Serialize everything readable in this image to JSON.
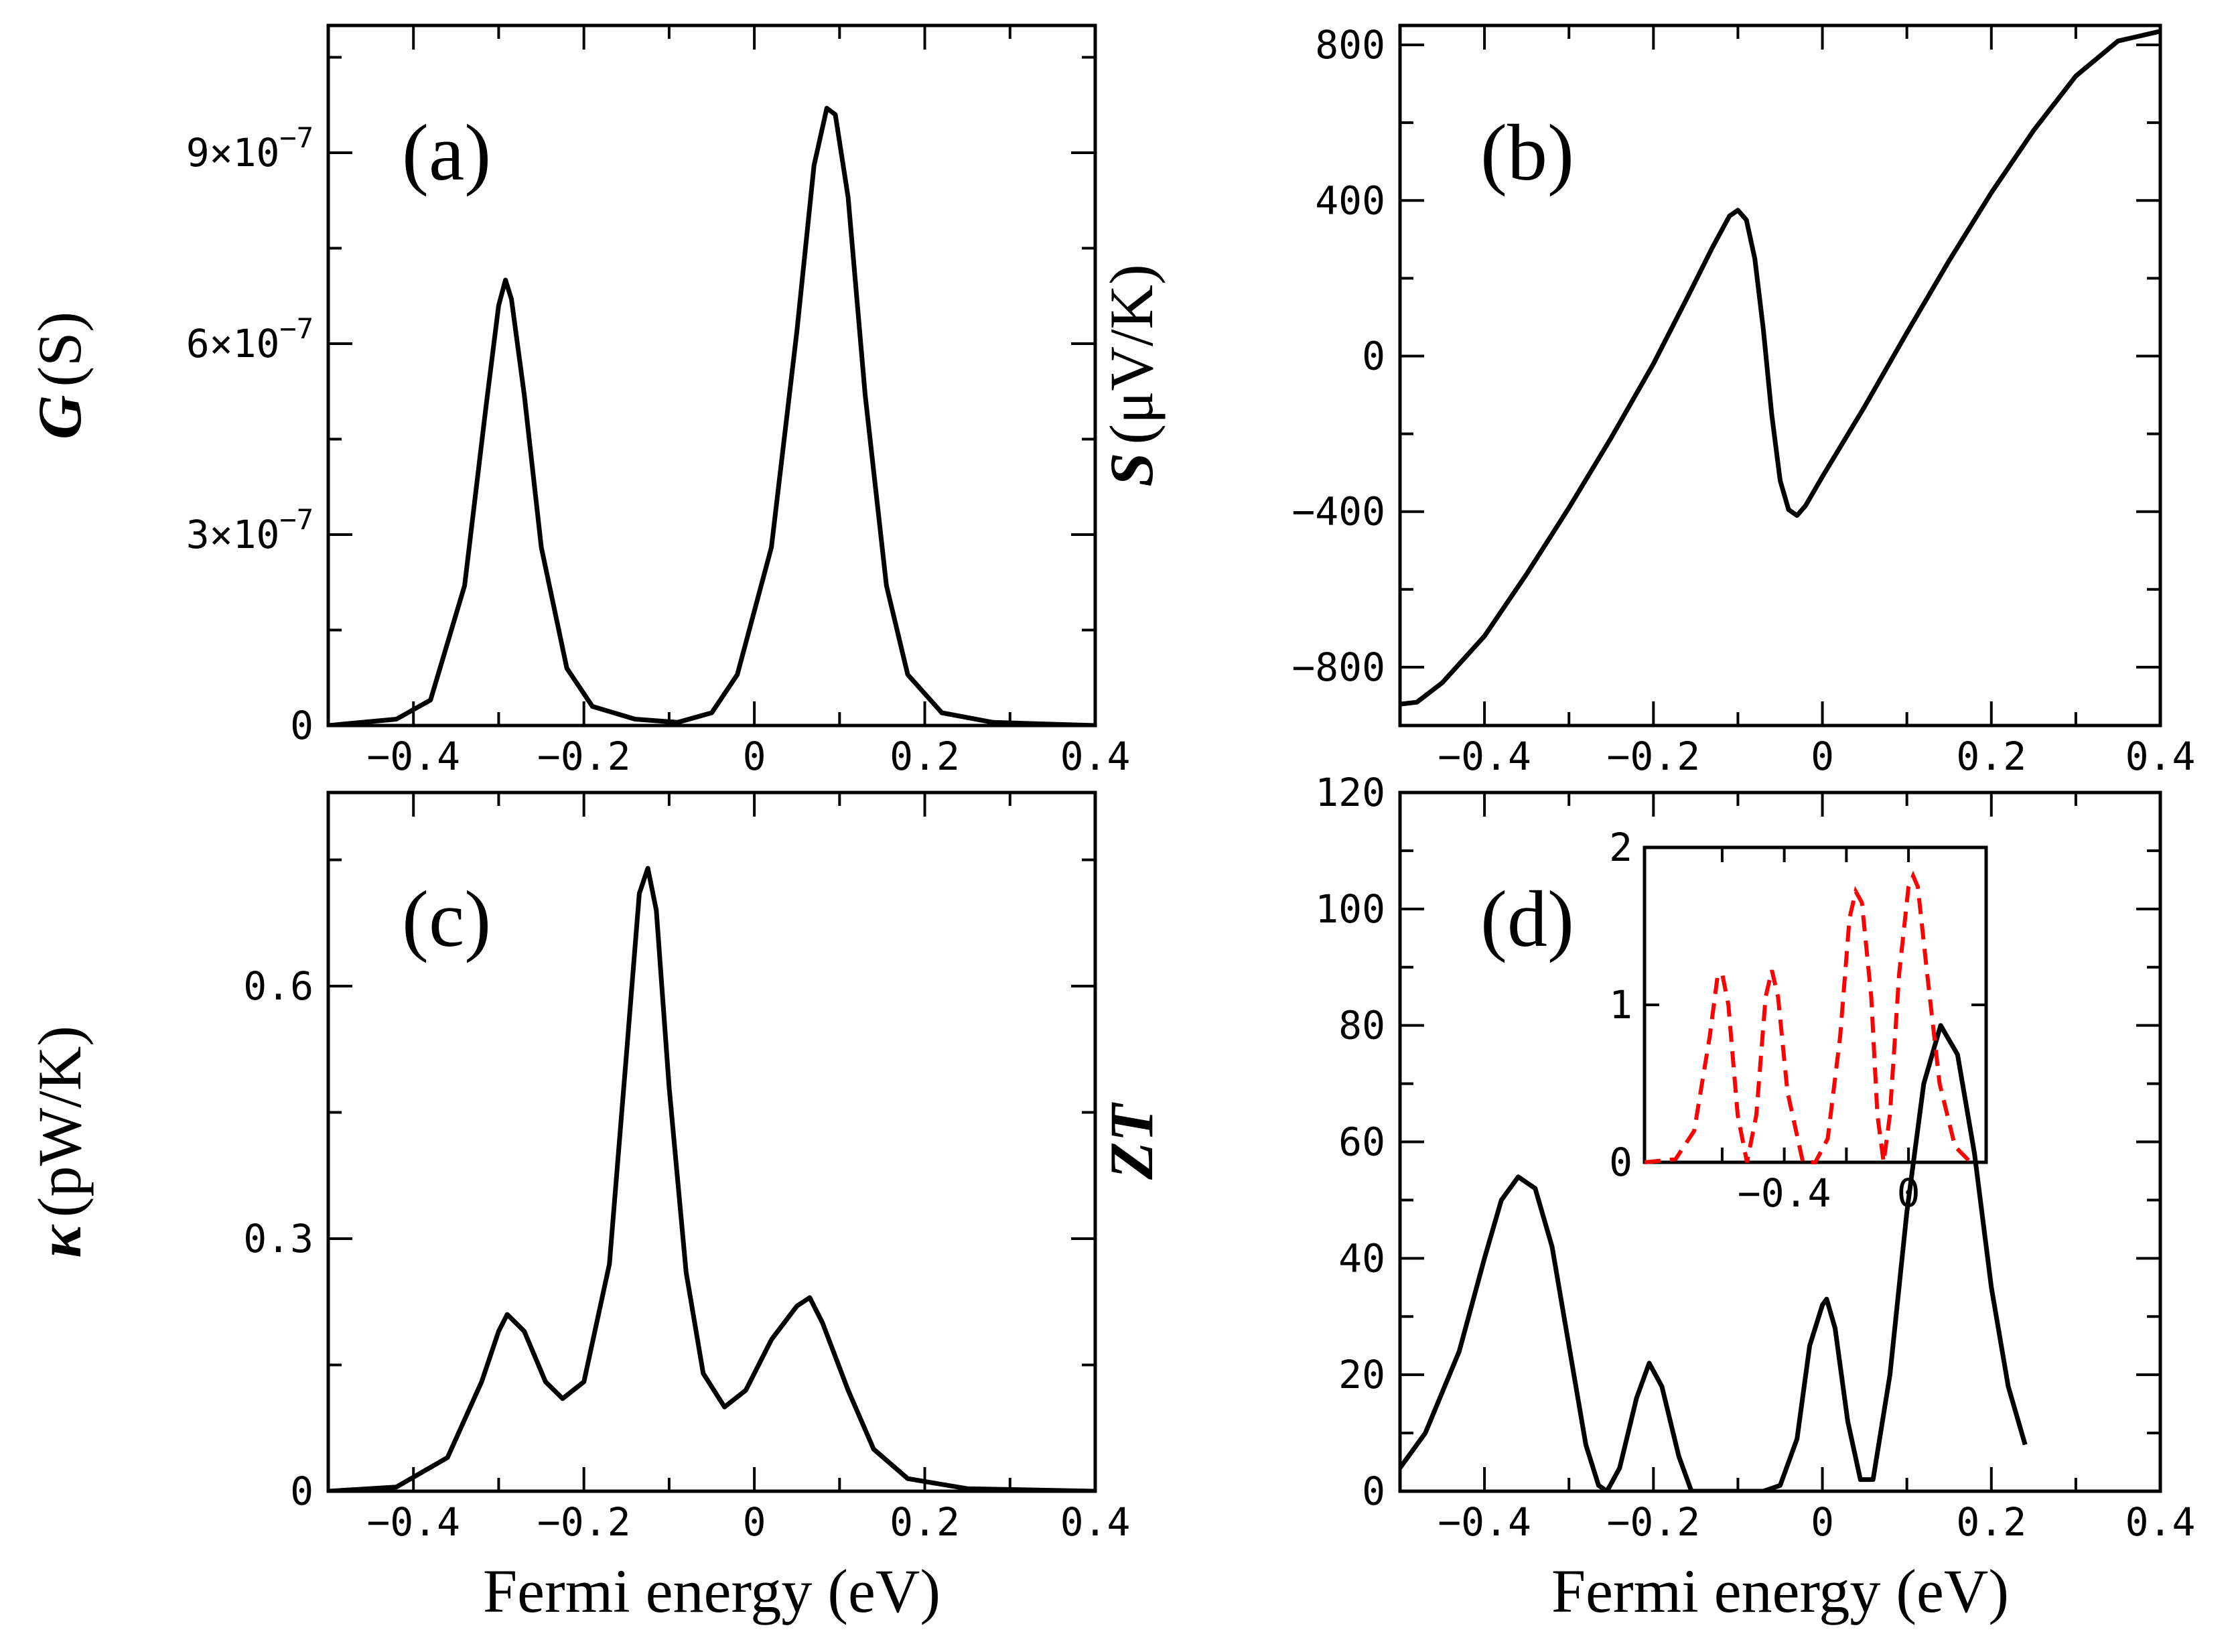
{
  "chart_data": [
    {
      "id": "a",
      "type": "line",
      "panel_label": "(a)",
      "ylabel_symbol": "G",
      "ylabel_unit": "(S)",
      "xlabel": "",
      "xlim": [
        -0.5,
        0.4
      ],
      "ylim": [
        0,
        1.1e-06
      ],
      "xticks": [
        {
          "v": -0.4,
          "label": "−0.4"
        },
        {
          "v": -0.2,
          "label": "−0.2"
        },
        {
          "v": 0,
          "label": "0"
        },
        {
          "v": 0.2,
          "label": "0.2"
        },
        {
          "v": 0.4,
          "label": "0.4"
        }
      ],
      "yticks": [
        {
          "v": 0,
          "base": "0",
          "exp": ""
        },
        {
          "v": 3e-07,
          "base": "3×10",
          "exp": "−7"
        },
        {
          "v": 6e-07,
          "base": "6×10",
          "exp": "−7"
        },
        {
          "v": 9e-07,
          "base": "9×10",
          "exp": "−7"
        }
      ],
      "series": [
        {
          "name": "G",
          "color": "#000000",
          "points": [
            [
              -0.5,
              0
            ],
            [
              -0.42,
              1e-08
            ],
            [
              -0.38,
              4e-08
            ],
            [
              -0.34,
              2.2e-07
            ],
            [
              -0.315,
              5e-07
            ],
            [
              -0.3,
              6.6e-07
            ],
            [
              -0.292,
              7e-07
            ],
            [
              -0.285,
              6.7e-07
            ],
            [
              -0.27,
              5.2e-07
            ],
            [
              -0.25,
              2.8e-07
            ],
            [
              -0.22,
              9e-08
            ],
            [
              -0.19,
              3e-08
            ],
            [
              -0.14,
              1e-08
            ],
            [
              -0.09,
              5e-09
            ],
            [
              -0.05,
              2e-08
            ],
            [
              -0.02,
              8e-08
            ],
            [
              0.02,
              2.8e-07
            ],
            [
              0.05,
              6.2e-07
            ],
            [
              0.07,
              8.8e-07
            ],
            [
              0.085,
              9.7e-07
            ],
            [
              0.095,
              9.6e-07
            ],
            [
              0.11,
              8.3e-07
            ],
            [
              0.13,
              5.2e-07
            ],
            [
              0.155,
              2.2e-07
            ],
            [
              0.18,
              8e-08
            ],
            [
              0.22,
              2e-08
            ],
            [
              0.28,
              5e-09
            ],
            [
              0.4,
              0
            ]
          ]
        }
      ]
    },
    {
      "id": "b",
      "type": "line",
      "panel_label": "(b)",
      "ylabel_symbol": "S",
      "ylabel_unit": "(μV/K)",
      "xlabel": "",
      "xlim": [
        -0.5,
        0.4
      ],
      "ylim": [
        -950,
        850
      ],
      "xticks": [
        {
          "v": -0.4,
          "label": "−0.4"
        },
        {
          "v": -0.2,
          "label": "−0.2"
        },
        {
          "v": 0,
          "label": "0"
        },
        {
          "v": 0.2,
          "label": "0.2"
        },
        {
          "v": 0.4,
          "label": "0.4"
        }
      ],
      "yticks": [
        {
          "v": -800,
          "base": "−800",
          "exp": ""
        },
        {
          "v": -400,
          "base": "−400",
          "exp": ""
        },
        {
          "v": 0,
          "base": "0",
          "exp": ""
        },
        {
          "v": 400,
          "base": "400",
          "exp": ""
        },
        {
          "v": 800,
          "base": "800",
          "exp": ""
        }
      ],
      "series": [
        {
          "name": "S",
          "color": "#000000",
          "points": [
            [
              -0.5,
              -895
            ],
            [
              -0.48,
              -890
            ],
            [
              -0.45,
              -840
            ],
            [
              -0.4,
              -720
            ],
            [
              -0.35,
              -560
            ],
            [
              -0.3,
              -390
            ],
            [
              -0.25,
              -210
            ],
            [
              -0.2,
              -20
            ],
            [
              -0.16,
              150
            ],
            [
              -0.13,
              280
            ],
            [
              -0.11,
              360
            ],
            [
              -0.1,
              375
            ],
            [
              -0.09,
              350
            ],
            [
              -0.08,
              250
            ],
            [
              -0.07,
              70
            ],
            [
              -0.06,
              -150
            ],
            [
              -0.05,
              -320
            ],
            [
              -0.04,
              -395
            ],
            [
              -0.03,
              -410
            ],
            [
              -0.02,
              -385
            ],
            [
              0,
              -310
            ],
            [
              0.05,
              -130
            ],
            [
              0.1,
              60
            ],
            [
              0.15,
              245
            ],
            [
              0.2,
              420
            ],
            [
              0.25,
              580
            ],
            [
              0.3,
              720
            ],
            [
              0.35,
              810
            ],
            [
              0.4,
              835
            ]
          ]
        }
      ]
    },
    {
      "id": "c",
      "type": "line",
      "panel_label": "(c)",
      "ylabel_symbol": "κ",
      "ylabel_unit": "(pW/K)",
      "xlabel": "Fermi energy (eV)",
      "xlim": [
        -0.5,
        0.4
      ],
      "ylim": [
        0,
        0.83
      ],
      "xticks": [
        {
          "v": -0.4,
          "label": "−0.4"
        },
        {
          "v": -0.2,
          "label": "−0.2"
        },
        {
          "v": 0,
          "label": "0"
        },
        {
          "v": 0.2,
          "label": "0.2"
        },
        {
          "v": 0.4,
          "label": "0.4"
        }
      ],
      "yticks": [
        {
          "v": 0,
          "base": "0",
          "exp": ""
        },
        {
          "v": 0.3,
          "base": "0.3",
          "exp": ""
        },
        {
          "v": 0.6,
          "base": "0.6",
          "exp": ""
        }
      ],
      "series": [
        {
          "name": "kappa",
          "color": "#000000",
          "points": [
            [
              -0.5,
              0
            ],
            [
              -0.42,
              0.005
            ],
            [
              -0.36,
              0.04
            ],
            [
              -0.32,
              0.13
            ],
            [
              -0.3,
              0.19
            ],
            [
              -0.29,
              0.21
            ],
            [
              -0.27,
              0.19
            ],
            [
              -0.245,
              0.13
            ],
            [
              -0.225,
              0.11
            ],
            [
              -0.2,
              0.13
            ],
            [
              -0.17,
              0.27
            ],
            [
              -0.15,
              0.52
            ],
            [
              -0.135,
              0.71
            ],
            [
              -0.125,
              0.74
            ],
            [
              -0.115,
              0.69
            ],
            [
              -0.1,
              0.48
            ],
            [
              -0.08,
              0.26
            ],
            [
              -0.06,
              0.14
            ],
            [
              -0.035,
              0.1
            ],
            [
              -0.01,
              0.12
            ],
            [
              0.02,
              0.18
            ],
            [
              0.05,
              0.22
            ],
            [
              0.065,
              0.23
            ],
            [
              0.08,
              0.2
            ],
            [
              0.11,
              0.12
            ],
            [
              0.14,
              0.05
            ],
            [
              0.18,
              0.015
            ],
            [
              0.25,
              0.003
            ],
            [
              0.4,
              0
            ]
          ]
        }
      ]
    },
    {
      "id": "d",
      "type": "line",
      "panel_label": "(d)",
      "ylabel_symbol": "ZT",
      "ylabel_unit": "",
      "xlabel": "Fermi energy (eV)",
      "xlim": [
        -0.5,
        0.4
      ],
      "ylim": [
        0,
        120
      ],
      "xticks": [
        {
          "v": -0.4,
          "label": "−0.4"
        },
        {
          "v": -0.2,
          "label": "−0.2"
        },
        {
          "v": 0,
          "label": "0"
        },
        {
          "v": 0.2,
          "label": "0.2"
        },
        {
          "v": 0.4,
          "label": "0.4"
        }
      ],
      "yticks": [
        {
          "v": 0,
          "base": "0",
          "exp": ""
        },
        {
          "v": 20,
          "base": "20",
          "exp": ""
        },
        {
          "v": 40,
          "base": "40",
          "exp": ""
        },
        {
          "v": 60,
          "base": "60",
          "exp": ""
        },
        {
          "v": 80,
          "base": "80",
          "exp": ""
        },
        {
          "v": 100,
          "base": "100",
          "exp": ""
        },
        {
          "v": 120,
          "base": "120",
          "exp": ""
        }
      ],
      "series": [
        {
          "name": "ZT",
          "color": "#000000",
          "points": [
            [
              -0.5,
              4
            ],
            [
              -0.47,
              10
            ],
            [
              -0.43,
              24
            ],
            [
              -0.4,
              40
            ],
            [
              -0.38,
              50
            ],
            [
              -0.36,
              54
            ],
            [
              -0.34,
              52
            ],
            [
              -0.32,
              42
            ],
            [
              -0.3,
              25
            ],
            [
              -0.28,
              8
            ],
            [
              -0.265,
              1
            ],
            [
              -0.255,
              0
            ],
            [
              -0.24,
              4
            ],
            [
              -0.22,
              16
            ],
            [
              -0.205,
              22
            ],
            [
              -0.19,
              18
            ],
            [
              -0.17,
              6
            ],
            [
              -0.155,
              0
            ],
            [
              -0.13,
              0
            ],
            [
              -0.1,
              0
            ],
            [
              -0.07,
              0
            ],
            [
              -0.05,
              1
            ],
            [
              -0.03,
              9
            ],
            [
              -0.015,
              25
            ],
            [
              0,
              32
            ],
            [
              0.005,
              33
            ],
            [
              0.015,
              28
            ],
            [
              0.03,
              12
            ],
            [
              0.045,
              2
            ],
            [
              0.06,
              2
            ],
            [
              0.08,
              20
            ],
            [
              0.1,
              48
            ],
            [
              0.12,
              70
            ],
            [
              0.14,
              80
            ],
            [
              0.16,
              75
            ],
            [
              0.18,
              58
            ],
            [
              0.2,
              35
            ],
            [
              0.22,
              18
            ],
            [
              0.24,
              8
            ]
          ]
        }
      ],
      "inset": {
        "type": "line",
        "xlim": [
          -0.85,
          0.25
        ],
        "ylim": [
          0,
          2
        ],
        "xticks": [
          {
            "v": -0.6,
            "label": ""
          },
          {
            "v": -0.4,
            "label": "−0.4"
          },
          {
            "v": -0.2,
            "label": ""
          },
          {
            "v": 0,
            "label": "0"
          }
        ],
        "yticks": [
          {
            "v": 0,
            "label": "0"
          },
          {
            "v": 1,
            "label": "1"
          },
          {
            "v": 2,
            "label": "2"
          }
        ],
        "series": [
          {
            "name": "ZT (inset)",
            "color": "#ff0000",
            "style": "dashed",
            "points": [
              [
                -0.85,
                0
              ],
              [
                -0.75,
                0.02
              ],
              [
                -0.69,
                0.2
              ],
              [
                -0.64,
                0.8
              ],
              [
                -0.615,
                1.18
              ],
              [
                -0.6,
                1.2
              ],
              [
                -0.58,
                1.0
              ],
              [
                -0.55,
                0.3
              ],
              [
                -0.52,
                0
              ],
              [
                -0.49,
                0.3
              ],
              [
                -0.46,
                1.05
              ],
              [
                -0.44,
                1.22
              ],
              [
                -0.42,
                1.05
              ],
              [
                -0.39,
                0.45
              ],
              [
                -0.34,
                0
              ],
              [
                -0.3,
                0
              ],
              [
                -0.26,
                0.15
              ],
              [
                -0.22,
                0.8
              ],
              [
                -0.19,
                1.55
              ],
              [
                -0.17,
                1.72
              ],
              [
                -0.15,
                1.65
              ],
              [
                -0.12,
                1.05
              ],
              [
                -0.1,
                0.3
              ],
              [
                -0.08,
                0
              ],
              [
                -0.06,
                0.3
              ],
              [
                -0.03,
                1.2
              ],
              [
                0,
                1.75
              ],
              [
                0.015,
                1.82
              ],
              [
                0.03,
                1.75
              ],
              [
                0.06,
                1.2
              ],
              [
                0.1,
                0.5
              ],
              [
                0.15,
                0.1
              ],
              [
                0.2,
                0
              ]
            ]
          }
        ]
      }
    }
  ]
}
